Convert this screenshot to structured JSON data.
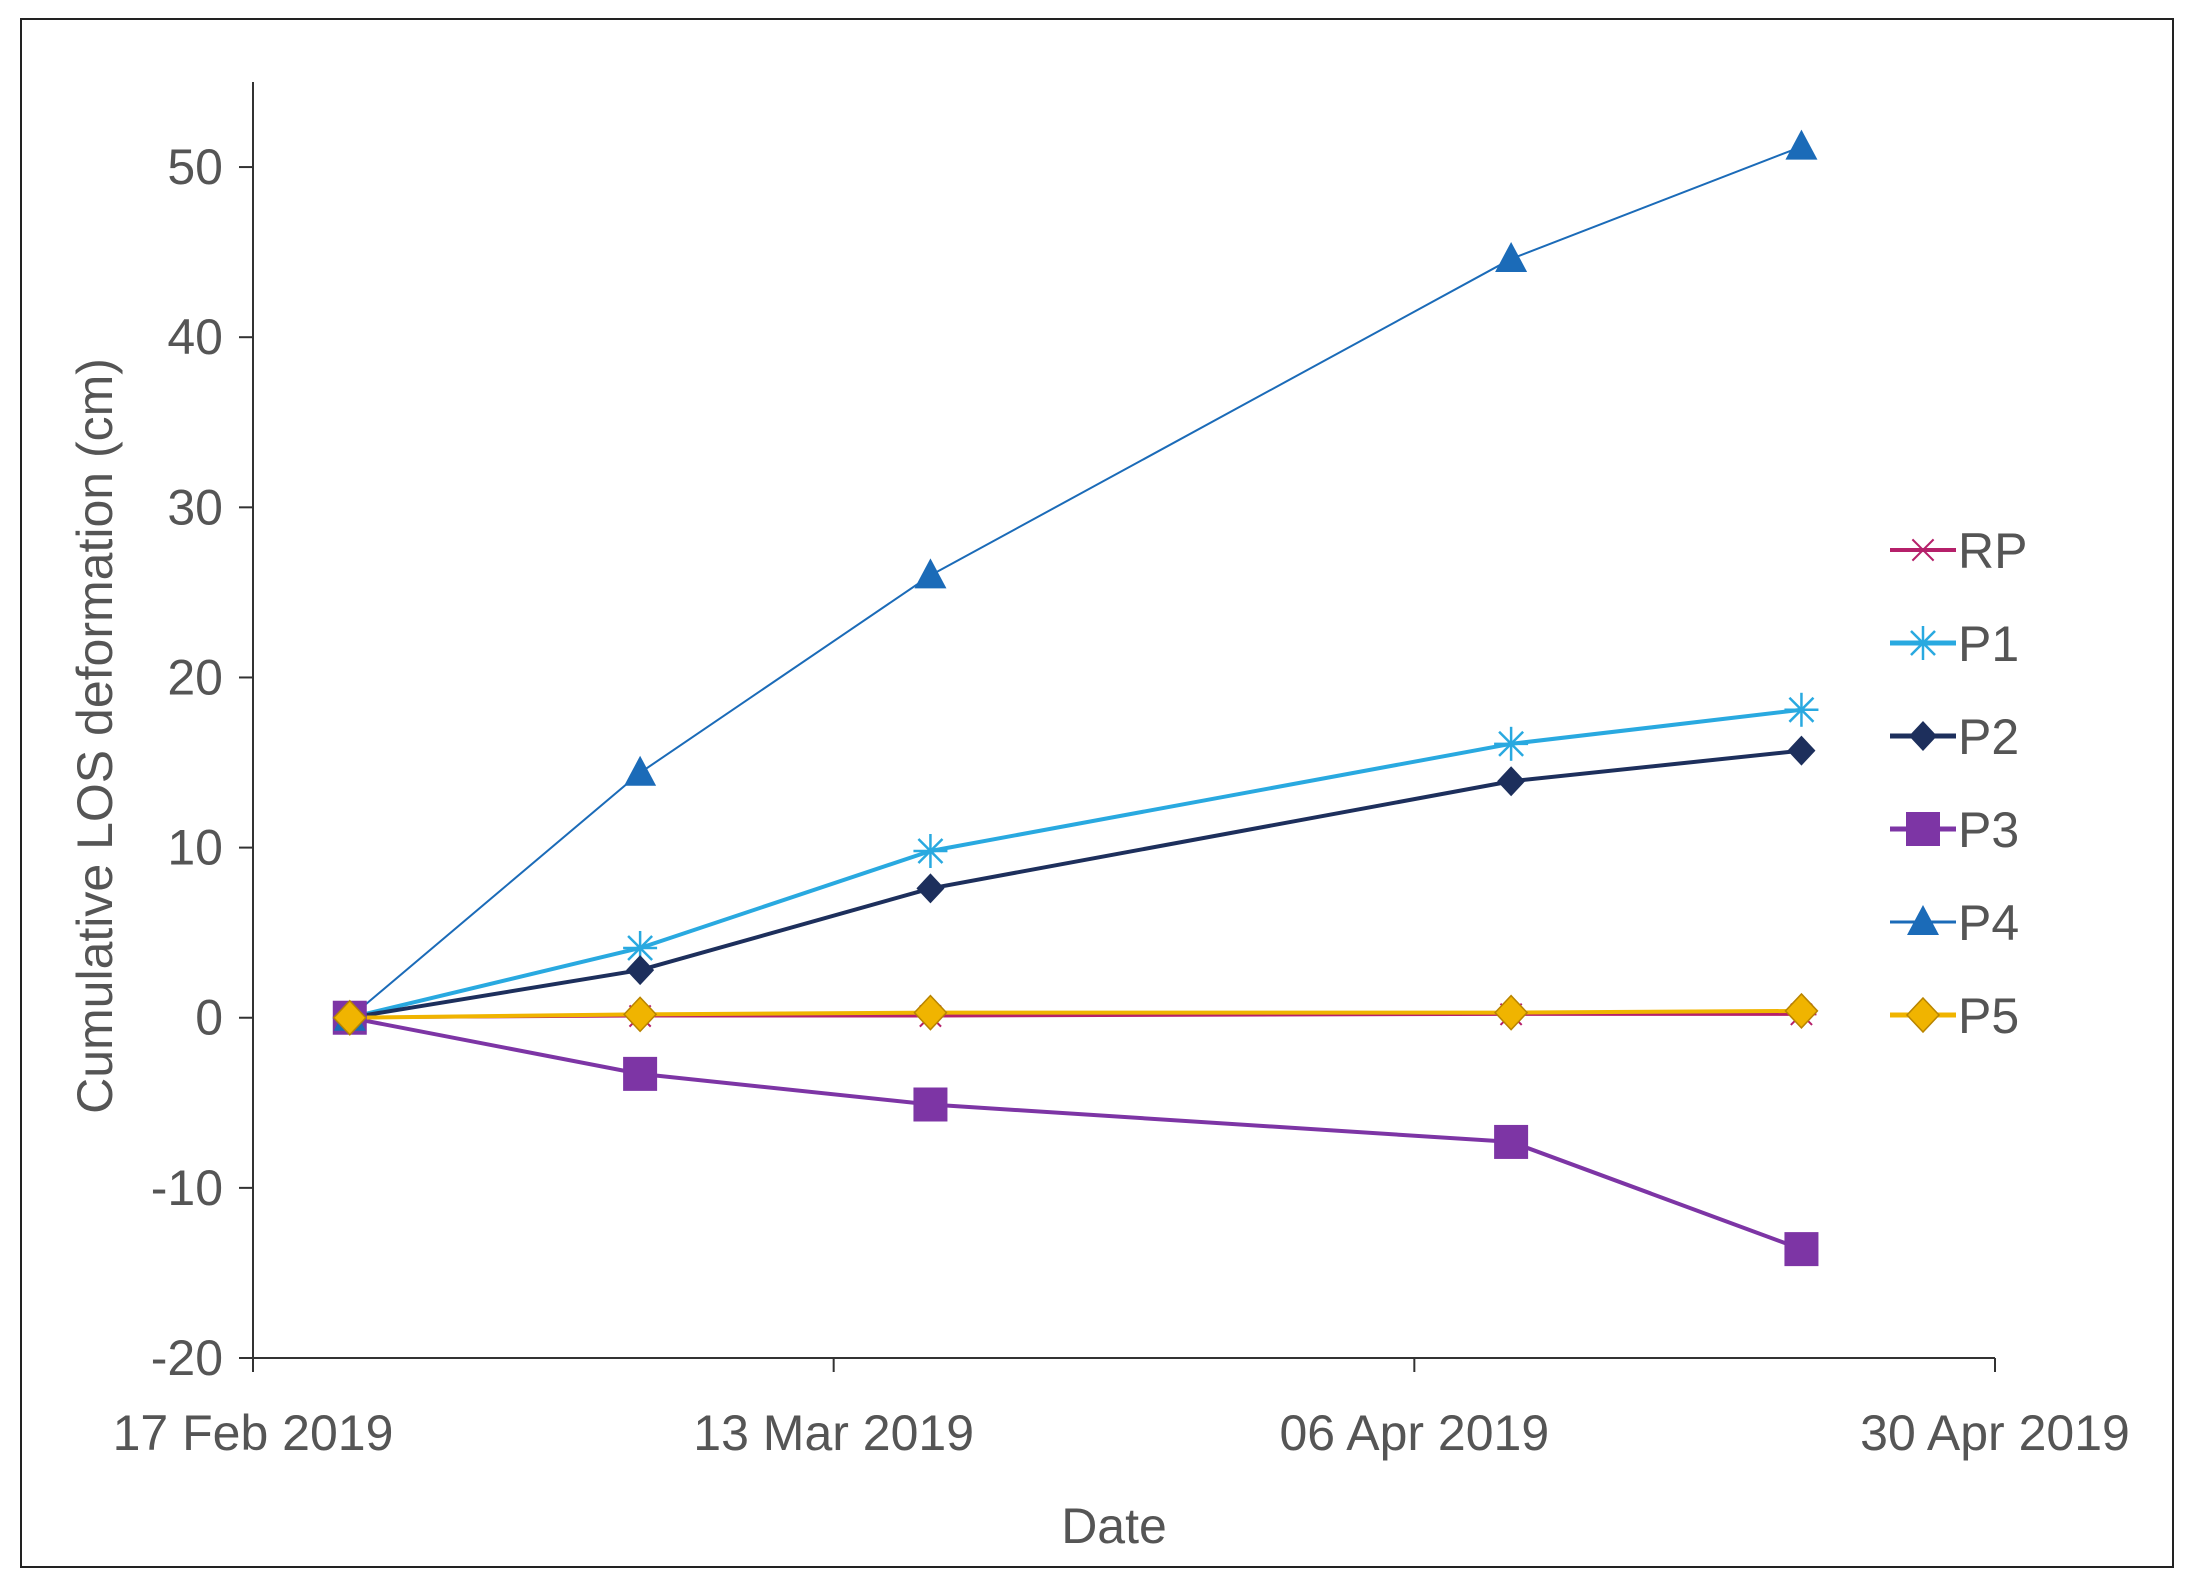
{
  "chart_data": {
    "type": "line",
    "title": "",
    "xlabel": "Date",
    "ylabel": "Cumulative LOS deformation (cm)",
    "xlim_days": [
      0,
      72
    ],
    "ylim": [
      -20,
      55
    ],
    "x_ticks": [
      {
        "day": 0,
        "label": "17 Feb 2019"
      },
      {
        "day": 24,
        "label": "13 Mar 2019"
      },
      {
        "day": 48,
        "label": "06 Apr 2019"
      },
      {
        "day": 72,
        "label": "30 Apr 2019"
      }
    ],
    "y_ticks": [
      -20,
      -10,
      0,
      10,
      20,
      30,
      40,
      50
    ],
    "x_days": [
      4,
      16,
      28,
      52,
      64
    ],
    "legend_position": "right",
    "series": [
      {
        "name": "RP",
        "color": "#b5206a",
        "marker": "x-star",
        "stroke_width": 3,
        "values": [
          0,
          0.1,
          0.1,
          0.2,
          0.2
        ]
      },
      {
        "name": "P1",
        "color": "#29a9e0",
        "marker": "asterisk",
        "stroke_width": 4,
        "values": [
          0,
          4.1,
          9.8,
          16.1,
          18.1
        ]
      },
      {
        "name": "P2",
        "color": "#1d2f5c",
        "marker": "diamond",
        "stroke_width": 4,
        "values": [
          0,
          2.8,
          7.6,
          13.9,
          15.7
        ]
      },
      {
        "name": "P3",
        "color": "#7d35a5",
        "marker": "square",
        "stroke_width": 4,
        "values": [
          0,
          -3.3,
          -5.1,
          -7.3,
          -13.6
        ]
      },
      {
        "name": "P4",
        "color": "#1b6bb8",
        "marker": "triangle",
        "stroke_width": 2,
        "values": [
          0,
          14.4,
          26.0,
          44.6,
          51.2
        ]
      },
      {
        "name": "P5",
        "color": "#f0b400",
        "marker": "diamond-gold",
        "stroke_width": 4,
        "values": [
          0,
          0.2,
          0.3,
          0.3,
          0.4
        ]
      }
    ]
  }
}
